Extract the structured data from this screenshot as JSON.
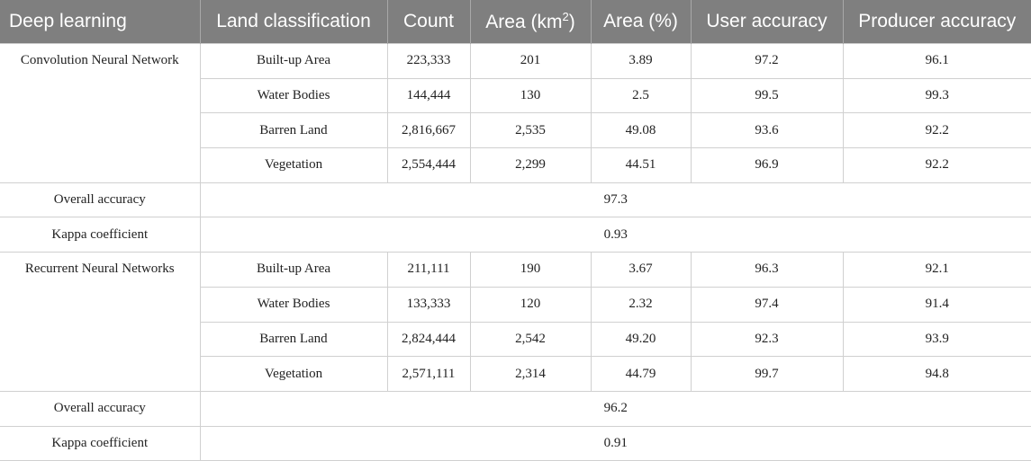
{
  "table": {
    "headers": {
      "deep_learning": "Deep learning",
      "land_classification": "Land classification",
      "count": "Count",
      "area_km_base": "Area (km",
      "area_km_sup": "2",
      "area_km_close": ")",
      "area_pct": "Area (%)",
      "user_accuracy": "User accuracy",
      "producer_accuracy": "Producer accuracy"
    },
    "groups": [
      {
        "model": "Convolution Neural Network",
        "rows": [
          {
            "land": "Built-up Area",
            "count": "223,333",
            "area_km": "201",
            "area_pct": "3.89",
            "user": "97.2",
            "producer": "96.1"
          },
          {
            "land": "Water Bodies",
            "count": "144,444",
            "area_km": "130",
            "area_pct": "2.5",
            "user": "99.5",
            "producer": "99.3"
          },
          {
            "land": "Barren Land",
            "count": "2,816,667",
            "area_km": "2,535",
            "area_pct": "49.08",
            "user": "93.6",
            "producer": "92.2"
          },
          {
            "land": "Vegetation",
            "count": "2,554,444",
            "area_km": "2,299",
            "area_pct": "44.51",
            "user": "96.9",
            "producer": "92.2"
          }
        ],
        "overall_label": "Overall accuracy",
        "overall_value": "97.3",
        "kappa_label": "Kappa coefficient",
        "kappa_value": "0.93"
      },
      {
        "model": "Recurrent Neural Networks",
        "rows": [
          {
            "land": "Built-up Area",
            "count": "211,111",
            "area_km": "190",
            "area_pct": "3.67",
            "user": "96.3",
            "producer": "92.1"
          },
          {
            "land": "Water Bodies",
            "count": "133,333",
            "area_km": "120",
            "area_pct": "2.32",
            "user": "97.4",
            "producer": "91.4"
          },
          {
            "land": "Barren Land",
            "count": "2,824,444",
            "area_km": "2,542",
            "area_pct": "49.20",
            "user": "92.3",
            "producer": "93.9"
          },
          {
            "land": "Vegetation",
            "count": "2,571,111",
            "area_km": "2,314",
            "area_pct": "44.79",
            "user": "99.7",
            "producer": "94.8"
          }
        ],
        "overall_label": "Overall accuracy",
        "overall_value": "96.2",
        "kappa_label": "Kappa coefficient",
        "kappa_value": "0.91"
      }
    ]
  }
}
